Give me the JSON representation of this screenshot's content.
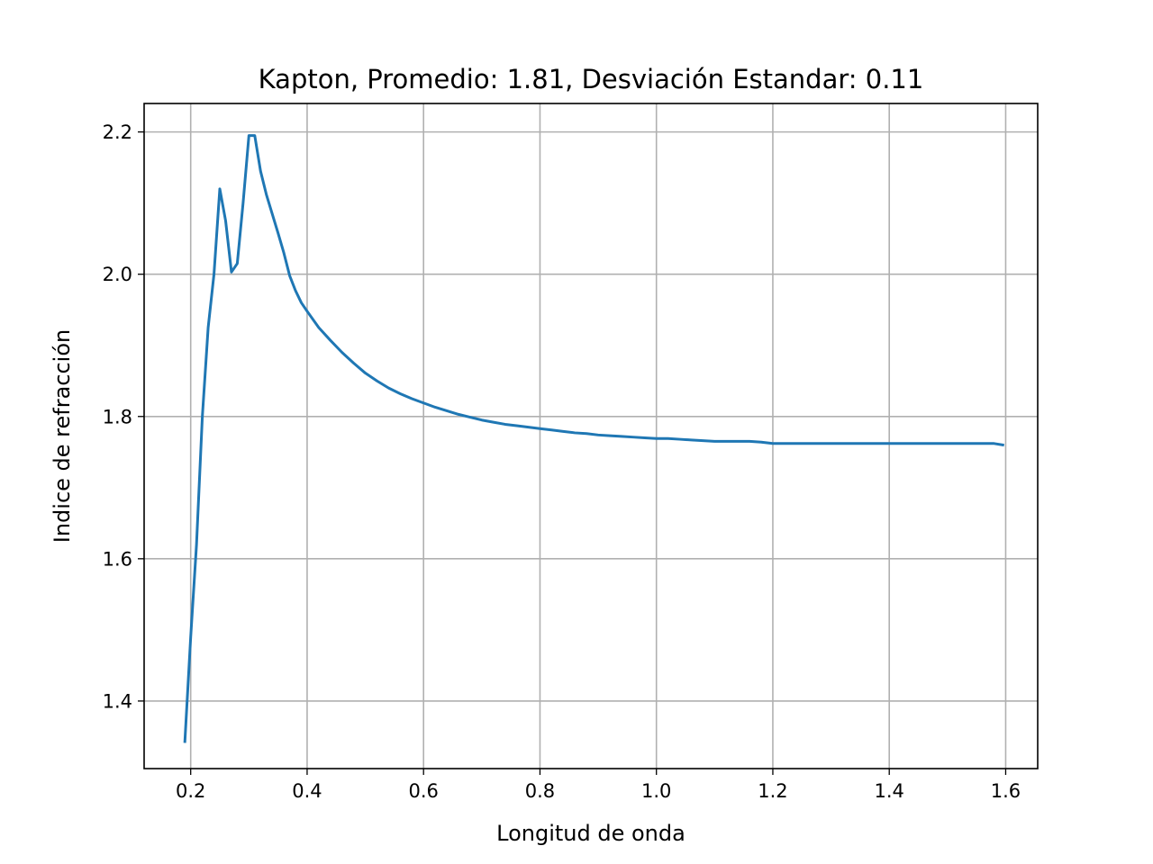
{
  "chart_data": {
    "type": "line",
    "title": "Kapton, Promedio: 1.81, Desviación Estandar: 0.11",
    "xlabel": "Longitud de onda",
    "ylabel": "Indice de refracción",
    "xlim": [
      0.12,
      1.655
    ],
    "ylim": [
      1.305,
      2.24
    ],
    "xticks": [
      {
        "value": 0.2,
        "label": "0.2"
      },
      {
        "value": 0.4,
        "label": "0.4"
      },
      {
        "value": 0.6,
        "label": "0.6"
      },
      {
        "value": 0.8,
        "label": "0.8"
      },
      {
        "value": 1.0,
        "label": "1.0"
      },
      {
        "value": 1.2,
        "label": "1.2"
      },
      {
        "value": 1.4,
        "label": "1.4"
      },
      {
        "value": 1.6,
        "label": "1.6"
      }
    ],
    "yticks": [
      {
        "value": 1.4,
        "label": "1.4"
      },
      {
        "value": 1.6,
        "label": "1.6"
      },
      {
        "value": 1.8,
        "label": "1.8"
      },
      {
        "value": 2.0,
        "label": "2.0"
      },
      {
        "value": 2.2,
        "label": "2.2"
      }
    ],
    "grid": true,
    "legend": "none",
    "series": [
      {
        "color": "#1f77b4",
        "x": [
          0.19,
          0.2,
          0.21,
          0.22,
          0.23,
          0.24,
          0.25,
          0.26,
          0.27,
          0.28,
          0.29,
          0.3,
          0.31,
          0.32,
          0.33,
          0.34,
          0.35,
          0.36,
          0.37,
          0.38,
          0.39,
          0.4,
          0.42,
          0.44,
          0.46,
          0.48,
          0.5,
          0.52,
          0.54,
          0.56,
          0.58,
          0.6,
          0.62,
          0.64,
          0.66,
          0.68,
          0.7,
          0.72,
          0.74,
          0.76,
          0.78,
          0.8,
          0.82,
          0.84,
          0.86,
          0.88,
          0.9,
          0.92,
          0.94,
          0.96,
          0.98,
          1.0,
          1.02,
          1.04,
          1.06,
          1.08,
          1.1,
          1.12,
          1.14,
          1.16,
          1.18,
          1.2,
          1.25,
          1.3,
          1.35,
          1.4,
          1.45,
          1.5,
          1.55,
          1.58,
          1.595
        ],
        "y": [
          1.343,
          1.49,
          1.62,
          1.8,
          1.925,
          2.0,
          2.12,
          2.075,
          2.003,
          2.015,
          2.1,
          2.195,
          2.195,
          2.145,
          2.112,
          2.085,
          2.058,
          2.03,
          1.998,
          1.977,
          1.96,
          1.948,
          1.925,
          1.907,
          1.89,
          1.875,
          1.861,
          1.85,
          1.84,
          1.832,
          1.825,
          1.819,
          1.813,
          1.808,
          1.803,
          1.799,
          1.795,
          1.792,
          1.789,
          1.787,
          1.785,
          1.783,
          1.781,
          1.779,
          1.777,
          1.776,
          1.774,
          1.773,
          1.772,
          1.771,
          1.77,
          1.769,
          1.769,
          1.768,
          1.767,
          1.766,
          1.765,
          1.765,
          1.765,
          1.765,
          1.764,
          1.762,
          1.762,
          1.762,
          1.762,
          1.762,
          1.762,
          1.762,
          1.762,
          1.762,
          1.76
        ]
      }
    ]
  }
}
